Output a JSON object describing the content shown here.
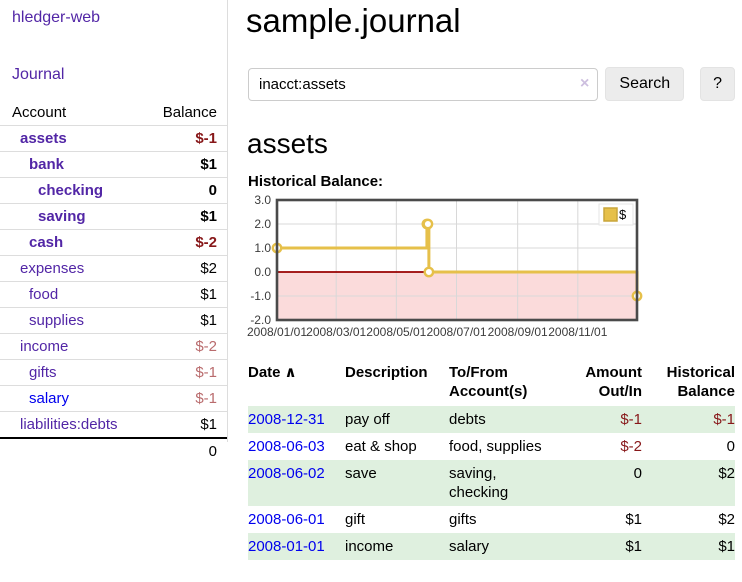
{
  "sidebar": {
    "app_title": "hledger-web",
    "journal_link": "Journal",
    "accounts_table": {
      "header_account": "Account",
      "header_balance": "Balance",
      "rows": [
        {
          "name": "assets",
          "indent": 1,
          "bold": true,
          "name_style": "purple",
          "balance": "$-1",
          "balance_style": "neg-strong"
        },
        {
          "name": "bank",
          "indent": 2,
          "bold": true,
          "name_style": "purple",
          "balance": "$1",
          "balance_style": "pos"
        },
        {
          "name": "checking",
          "indent": 3,
          "bold": true,
          "name_style": "purple",
          "balance": "0",
          "balance_style": "pos"
        },
        {
          "name": "saving",
          "indent": 3,
          "bold": true,
          "name_style": "purple",
          "balance": "$1",
          "balance_style": "pos"
        },
        {
          "name": "cash",
          "indent": 2,
          "bold": true,
          "name_style": "purple",
          "balance": "$-2",
          "balance_style": "neg-strong"
        },
        {
          "name": "expenses",
          "indent": 1,
          "bold": false,
          "name_style": "purple",
          "balance": "$2",
          "balance_style": "pos"
        },
        {
          "name": "food",
          "indent": 2,
          "bold": false,
          "name_style": "purple",
          "balance": "$1",
          "balance_style": "pos"
        },
        {
          "name": "supplies",
          "indent": 2,
          "bold": false,
          "name_style": "purple",
          "balance": "$1",
          "balance_style": "pos"
        },
        {
          "name": "income",
          "indent": 1,
          "bold": false,
          "name_style": "purple",
          "balance": "$-2",
          "balance_style": "neg-soft"
        },
        {
          "name": "gifts",
          "indent": 2,
          "bold": false,
          "name_style": "purple",
          "balance": "$-1",
          "balance_style": "neg-soft"
        },
        {
          "name": "salary",
          "indent": 2,
          "bold": false,
          "name_style": "blue",
          "balance": "$-1",
          "balance_style": "neg-soft"
        },
        {
          "name": "liabilities:debts",
          "indent": 1,
          "bold": false,
          "name_style": "purple",
          "balance": "$1",
          "balance_style": "pos"
        }
      ],
      "total": "0"
    }
  },
  "header": {
    "title": "sample.journal"
  },
  "search": {
    "query": "inacct:assets",
    "clear_icon": "×",
    "search_label": "Search",
    "help_label": "?"
  },
  "account_page": {
    "heading": "assets",
    "chart_label": "Historical Balance:"
  },
  "chart_data": {
    "type": "line",
    "title": "Historical Balance",
    "step": true,
    "series": [
      {
        "name": "$",
        "color": "#e6c04a",
        "points": [
          {
            "date": "2008-01-01",
            "value": 1
          },
          {
            "date": "2008-06-01",
            "value": 2
          },
          {
            "date": "2008-06-02",
            "value": 2
          },
          {
            "date": "2008-06-03",
            "value": 0
          },
          {
            "date": "2008-12-31",
            "value": -1
          }
        ]
      }
    ],
    "xlim": [
      "2008-01-01",
      "2008-12-31"
    ],
    "ylim": [
      -2,
      3
    ],
    "y_ticks": [
      3.0,
      2.0,
      1.0,
      0.0,
      -1.0,
      -2.0
    ],
    "x_tick_dates": [
      "2008-01-01",
      "2008-03-01",
      "2008-05-01",
      "2008-07-01",
      "2008-09-01",
      "2008-11-01"
    ],
    "x_tick_labels": [
      "2008/01/01",
      "2008/03/01",
      "2008/05/01",
      "2008/07/01",
      "2008/09/01",
      "2008/11/01"
    ],
    "grid": true,
    "legend_position": "top-right",
    "legend_label": "$",
    "colors": {
      "line": "#e6c04a",
      "marker_fill": "#ffffff",
      "zero_line": "#990000",
      "negative_region_fill": "#fbdbdb",
      "gridline": "#d8d8d8",
      "plot_border": "#4a4a4a",
      "legend_square_stroke": "#c9a53a"
    }
  },
  "register_table": {
    "headers": {
      "date": "Date",
      "sort_icon": "∧",
      "description": "Description",
      "accounts": "To/From Account(s)",
      "amount": "Amount Out/In",
      "balance": "Historical Balance"
    },
    "rows": [
      {
        "date": "2008-12-31",
        "description": "pay off",
        "accounts": "debts",
        "amount": "$-1",
        "amount_negative": true,
        "balance": "$-1",
        "balance_negative": true
      },
      {
        "date": "2008-06-03",
        "description": "eat & shop",
        "accounts": "food, supplies",
        "amount": "$-2",
        "amount_negative": true,
        "balance": "0",
        "balance_negative": false
      },
      {
        "date": "2008-06-02",
        "description": "save",
        "accounts": "saving,\nchecking",
        "amount": "0",
        "amount_negative": false,
        "balance": "$2",
        "balance_negative": false
      },
      {
        "date": "2008-06-01",
        "description": "gift",
        "accounts": "gifts",
        "amount": "$1",
        "amount_negative": false,
        "balance": "$2",
        "balance_negative": false
      },
      {
        "date": "2008-01-01",
        "description": "income",
        "accounts": "salary",
        "amount": "$1",
        "amount_negative": false,
        "balance": "$1",
        "balance_negative": false
      }
    ]
  },
  "colors": {
    "accent_purple": "#5226a6",
    "link_blue": "#0000ee",
    "negative_strong": "#871719",
    "negative_soft": "#b96b6d",
    "row_stripe_green": "#dff0df"
  }
}
